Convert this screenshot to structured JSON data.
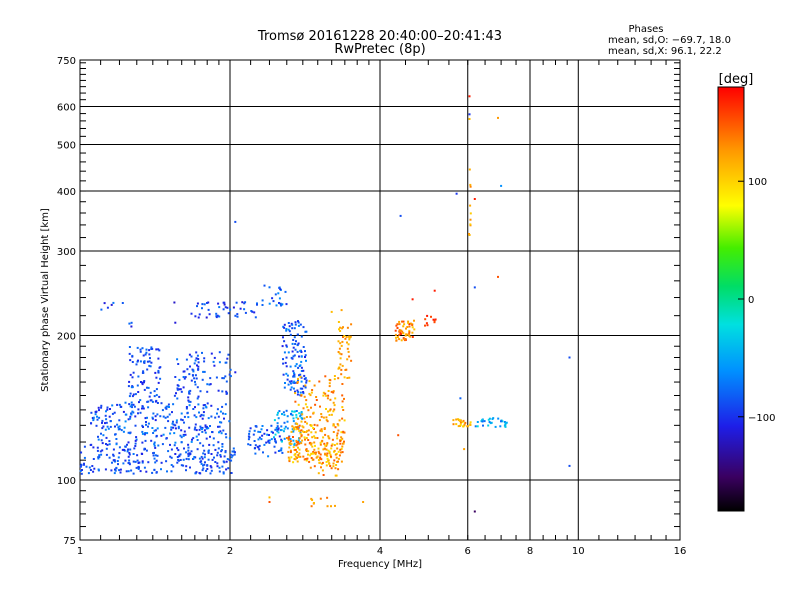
{
  "chart_data": {
    "type": "scatter",
    "title": "Tromsø 20161228 20:40:00–20:41:43",
    "subtitle": "RwPretec (8p)",
    "xlabel": "Frequency [MHz]",
    "ylabel": "Stationary phase Virtual Height [km]",
    "x_scale": "log",
    "y_scale": "log",
    "xlim": [
      1,
      16
    ],
    "ylim": [
      75,
      750
    ],
    "x_ticks": [
      1,
      2,
      4,
      6,
      8,
      10,
      16
    ],
    "x_tick_labels": [
      "1",
      "2",
      "4",
      "6",
      "8",
      "10",
      "16"
    ],
    "y_ticks": [
      75,
      100,
      200,
      300,
      400,
      500,
      600,
      750
    ],
    "y_tick_labels": [
      "75",
      "100",
      "200",
      "300",
      "400",
      "500",
      "600",
      "750"
    ],
    "grid": true,
    "phases_box": {
      "heading": "Phases",
      "line_o": "mean, sd,O: −69.7, 18.0",
      "line_x": "mean, sd,X:  96.1, 22.2"
    },
    "colorbar": {
      "label": "[deg]",
      "range": [
        -180,
        180
      ],
      "ticks": [
        100,
        0,
        -100
      ],
      "tick_labels": [
        "100",
        "0",
        "−100"
      ]
    },
    "clusters": [
      {
        "f": [
          1.0,
          2.05
        ],
        "h": [
          103,
          118
        ],
        "ph": [
          -110,
          -70
        ],
        "n": 240
      },
      {
        "f": [
          1.05,
          2.0
        ],
        "h": [
          118,
          145
        ],
        "ph": [
          -110,
          -60
        ],
        "n": 280
      },
      {
        "f": [
          1.25,
          1.45
        ],
        "h": [
          145,
          190
        ],
        "ph": [
          -110,
          -70
        ],
        "n": 90
      },
      {
        "f": [
          1.55,
          1.75
        ],
        "h": [
          145,
          185
        ],
        "ph": [
          -110,
          -70
        ],
        "n": 60
      },
      {
        "f": [
          1.75,
          2.05
        ],
        "h": [
          150,
          185
        ],
        "ph": [
          -110,
          -70
        ],
        "n": 35
      },
      {
        "f": [
          1.7,
          2.3
        ],
        "h": [
          218,
          235
        ],
        "ph": [
          -120,
          -70
        ],
        "n": 45
      },
      {
        "f": [
          2.3,
          2.6
        ],
        "h": [
          230,
          255
        ],
        "ph": [
          -110,
          -60
        ],
        "n": 22
      },
      {
        "f": [
          1.1,
          1.7
        ],
        "h": [
          205,
          235
        ],
        "ph": [
          -120,
          -70
        ],
        "n": 12
      },
      {
        "f": [
          2.15,
          2.55
        ],
        "h": [
          112,
          130
        ],
        "ph": [
          -110,
          -60
        ],
        "n": 70
      },
      {
        "f": [
          2.45,
          2.8
        ],
        "h": [
          118,
          140
        ],
        "ph": [
          -80,
          -20
        ],
        "n": 60
      },
      {
        "f": [
          2.55,
          2.85
        ],
        "h": [
          150,
          215
        ],
        "ph": [
          -110,
          -60
        ],
        "n": 120
      },
      {
        "f": [
          2.6,
          3.4
        ],
        "h": [
          108,
          130
        ],
        "ph": [
          90,
          150
        ],
        "n": 220
      },
      {
        "f": [
          2.7,
          3.4
        ],
        "h": [
          130,
          165
        ],
        "ph": [
          100,
          150
        ],
        "n": 90
      },
      {
        "f": [
          2.9,
          3.3
        ],
        "h": [
          102,
          108
        ],
        "ph": [
          100,
          150
        ],
        "n": 15
      },
      {
        "f": [
          2.8,
          3.3
        ],
        "h": [
          88,
          95
        ],
        "ph": [
          110,
          140
        ],
        "n": 10
      },
      {
        "f": [
          3.3,
          3.5
        ],
        "h": [
          160,
          215
        ],
        "ph": [
          100,
          140
        ],
        "n": 45
      },
      {
        "f": [
          4.3,
          4.7
        ],
        "h": [
          195,
          215
        ],
        "ph": [
          100,
          170
        ],
        "n": 55
      },
      {
        "f": [
          4.9,
          5.2
        ],
        "h": [
          205,
          220
        ],
        "ph": [
          150,
          175
        ],
        "n": 10
      },
      {
        "f": [
          5.6,
          6.1
        ],
        "h": [
          129,
          134
        ],
        "ph": [
          80,
          140
        ],
        "n": 25
      },
      {
        "f": [
          6.2,
          7.2
        ],
        "h": [
          129,
          135
        ],
        "ph": [
          -80,
          -20
        ],
        "n": 30
      },
      {
        "f": [
          6.0,
          6.1
        ],
        "h": [
          320,
          460
        ],
        "ph": [
          100,
          140
        ],
        "n": 10
      }
    ],
    "singles": [
      {
        "f": 6.05,
        "h": 630,
        "ph": 170
      },
      {
        "f": 6.05,
        "h": 578,
        "ph": -100
      },
      {
        "f": 6.05,
        "h": 565,
        "ph": 110
      },
      {
        "f": 6.9,
        "h": 568,
        "ph": 125
      },
      {
        "f": 5.7,
        "h": 395,
        "ph": -100
      },
      {
        "f": 7.0,
        "h": 410,
        "ph": -60
      },
      {
        "f": 6.2,
        "h": 385,
        "ph": 170
      },
      {
        "f": 4.4,
        "h": 355,
        "ph": -90
      },
      {
        "f": 2.05,
        "h": 345,
        "ph": -90
      },
      {
        "f": 6.9,
        "h": 265,
        "ph": 150
      },
      {
        "f": 6.2,
        "h": 252,
        "ph": -90
      },
      {
        "f": 5.15,
        "h": 248,
        "ph": 170
      },
      {
        "f": 4.65,
        "h": 238,
        "ph": 170
      },
      {
        "f": 9.6,
        "h": 180,
        "ph": -90
      },
      {
        "f": 9.6,
        "h": 107,
        "ph": -90
      },
      {
        "f": 6.2,
        "h": 86,
        "ph": -150
      },
      {
        "f": 4.35,
        "h": 124,
        "ph": 150
      },
      {
        "f": 5.9,
        "h": 116,
        "ph": 120
      },
      {
        "f": 5.8,
        "h": 148,
        "ph": -80
      },
      {
        "f": 3.7,
        "h": 90,
        "ph": 120
      },
      {
        "f": 2.4,
        "h": 92,
        "ph": 110
      },
      {
        "f": 2.4,
        "h": 90,
        "ph": 150
      },
      {
        "f": 3.2,
        "h": 224,
        "ph": 110
      },
      {
        "f": 3.35,
        "h": 226,
        "ph": 120
      }
    ]
  }
}
